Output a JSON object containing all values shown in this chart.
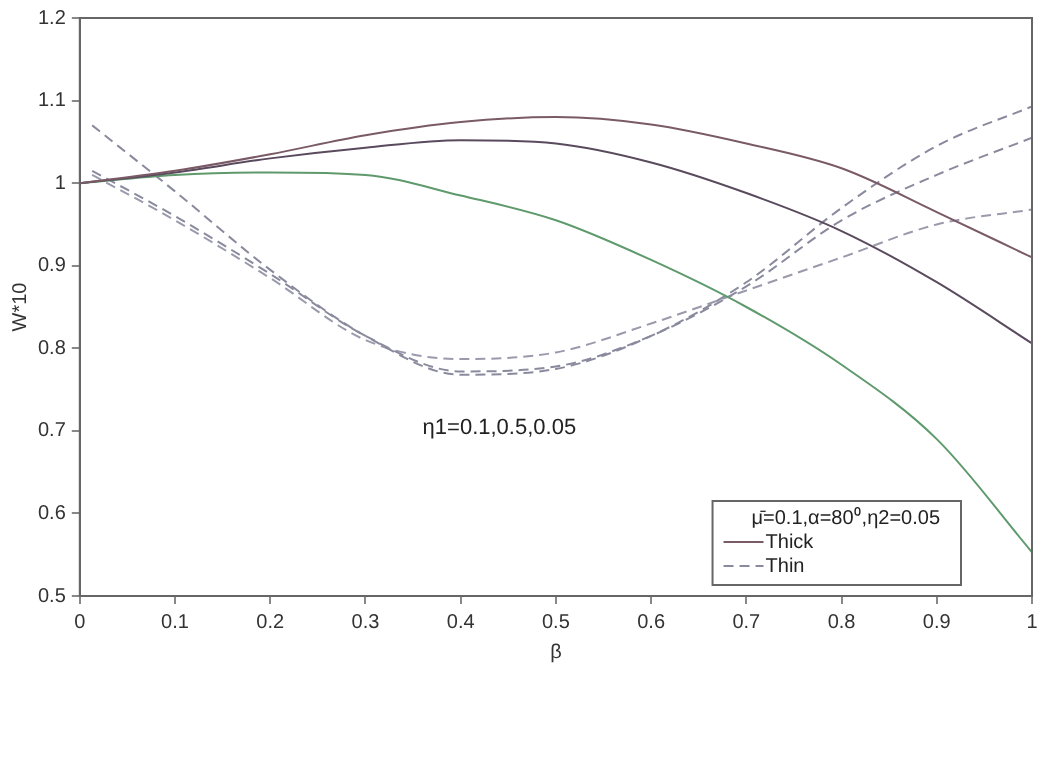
{
  "chart_data": {
    "type": "line",
    "xlabel": "β",
    "ylabel": "W*10",
    "legend_title": "μ̄=0.1,α=80⁰,η2=0.05",
    "legend": "bottom right",
    "grid": false,
    "xlim": [
      0,
      1
    ],
    "xticks": [
      0,
      0.1,
      0.2,
      0.3,
      0.4,
      0.5,
      0.6,
      0.7,
      0.8,
      0.9,
      1
    ],
    "ylim": [
      0.5,
      1.2
    ],
    "yticks": [
      0.5,
      0.6,
      0.7,
      0.8,
      0.9,
      1,
      1.1,
      1.2
    ],
    "annotations": [
      "η1=0.1,0.5,0.05"
    ],
    "series": [
      {
        "name": "Thick",
        "color": "#7a5a66",
        "line_style": "solid",
        "x": [
          0,
          0.1,
          0.2,
          0.3,
          0.4,
          0.5,
          0.6,
          0.7,
          0.8,
          0.9,
          1
        ],
        "values": [
          1.0,
          1.015,
          1.035,
          1.058,
          1.074,
          1.08,
          1.071,
          1.048,
          1.018,
          0.965,
          0.91
        ]
      },
      {
        "color": "#5a4a5e",
        "line_style": "solid",
        "x": [
          0,
          0.1,
          0.2,
          0.3,
          0.4,
          0.5,
          0.6,
          0.7,
          0.8,
          0.9,
          1
        ],
        "values": [
          1.0,
          1.013,
          1.03,
          1.043,
          1.052,
          1.048,
          1.025,
          0.988,
          0.942,
          0.88,
          0.806
        ]
      },
      {
        "color": "#5f9a6c",
        "line_style": "solid",
        "x": [
          0,
          0.1,
          0.2,
          0.3,
          0.4,
          0.5,
          0.6,
          0.7,
          0.8,
          0.9,
          1
        ],
        "values": [
          1.0,
          1.01,
          1.013,
          1.01,
          0.985,
          0.955,
          0.907,
          0.85,
          0.78,
          0.69,
          0.553
        ]
      },
      {
        "name": "Thin",
        "color": "#8a8a9e",
        "line_style": "dashed",
        "x": [
          0.013,
          0.1,
          0.2,
          0.3,
          0.4,
          0.5,
          0.6,
          0.7,
          0.8,
          0.9,
          1
        ],
        "values": [
          1.07,
          0.99,
          0.895,
          0.815,
          0.768,
          0.775,
          0.815,
          0.88,
          0.97,
          1.045,
          1.093
        ]
      },
      {
        "color": "#8a8a9e",
        "line_style": "dashed",
        "x": [
          0.013,
          0.1,
          0.2,
          0.3,
          0.4,
          0.5,
          0.6,
          0.7,
          0.8,
          0.9,
          1
        ],
        "values": [
          1.015,
          0.96,
          0.89,
          0.815,
          0.772,
          0.778,
          0.815,
          0.875,
          0.955,
          1.01,
          1.055
        ]
      },
      {
        "color": "#9a9aac",
        "line_style": "dashed",
        "x": [
          0.013,
          0.1,
          0.2,
          0.3,
          0.4,
          0.5,
          0.6,
          0.7,
          0.8,
          0.9,
          1
        ],
        "values": [
          1.01,
          0.955,
          0.885,
          0.81,
          0.787,
          0.795,
          0.83,
          0.87,
          0.91,
          0.95,
          0.968
        ]
      }
    ]
  }
}
